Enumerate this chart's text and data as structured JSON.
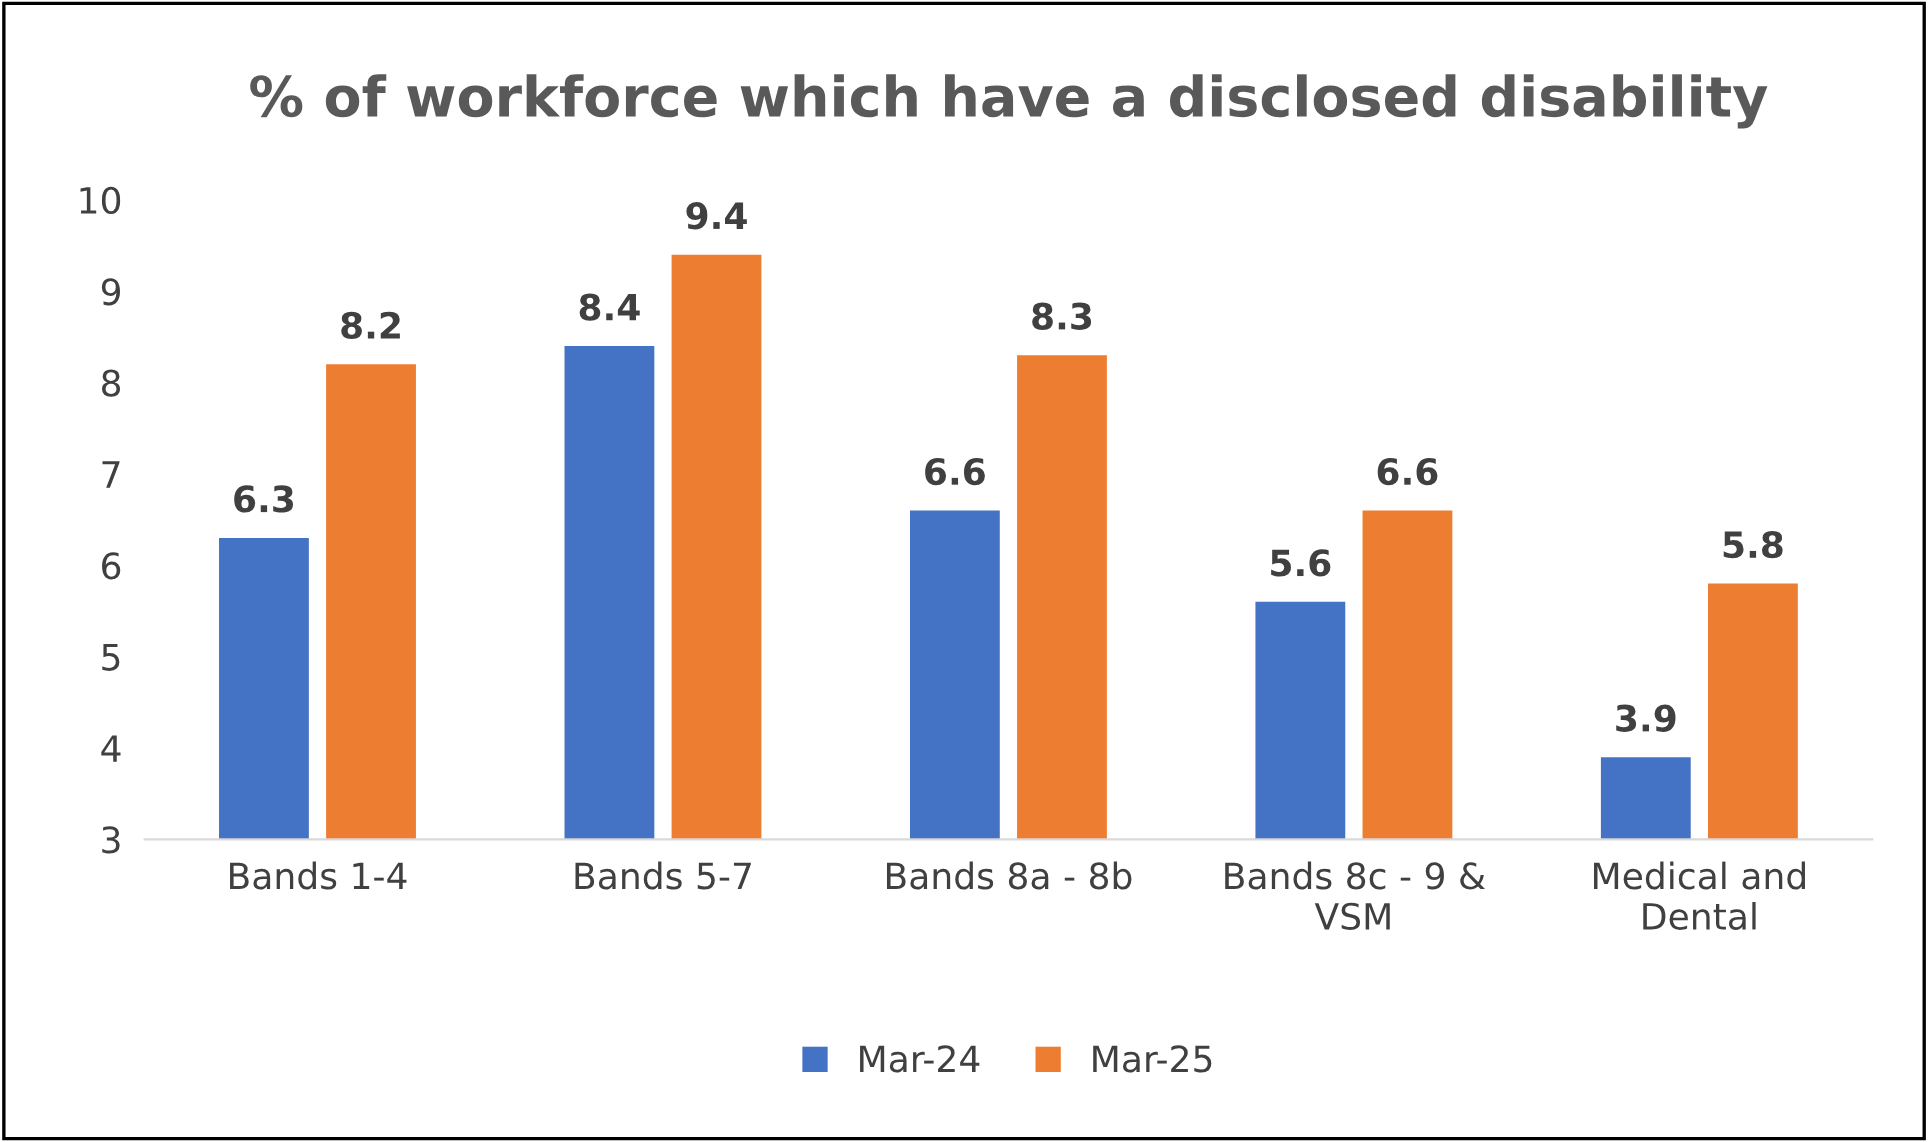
{
  "chart_data": {
    "type": "bar",
    "title": "% of workforce which have a disclosed disability",
    "categories": [
      "Bands 1-4",
      "Bands 5-7",
      "Bands 8a - 8b",
      "Bands 8c - 9 &\nVSM",
      "Medical and\nDental"
    ],
    "series": [
      {
        "name": "Mar-24",
        "color": "#4472c4",
        "values": [
          6.3,
          8.4,
          6.6,
          5.6,
          3.9
        ]
      },
      {
        "name": "Mar-25",
        "color": "#ed7d31",
        "values": [
          8.2,
          9.4,
          8.3,
          6.6,
          5.8
        ]
      }
    ],
    "ylim": [
      3,
      10
    ],
    "yticks": [
      3,
      4,
      5,
      6,
      7,
      8,
      9,
      10
    ],
    "grid": false,
    "legend": "bottom",
    "data_labels": true
  }
}
